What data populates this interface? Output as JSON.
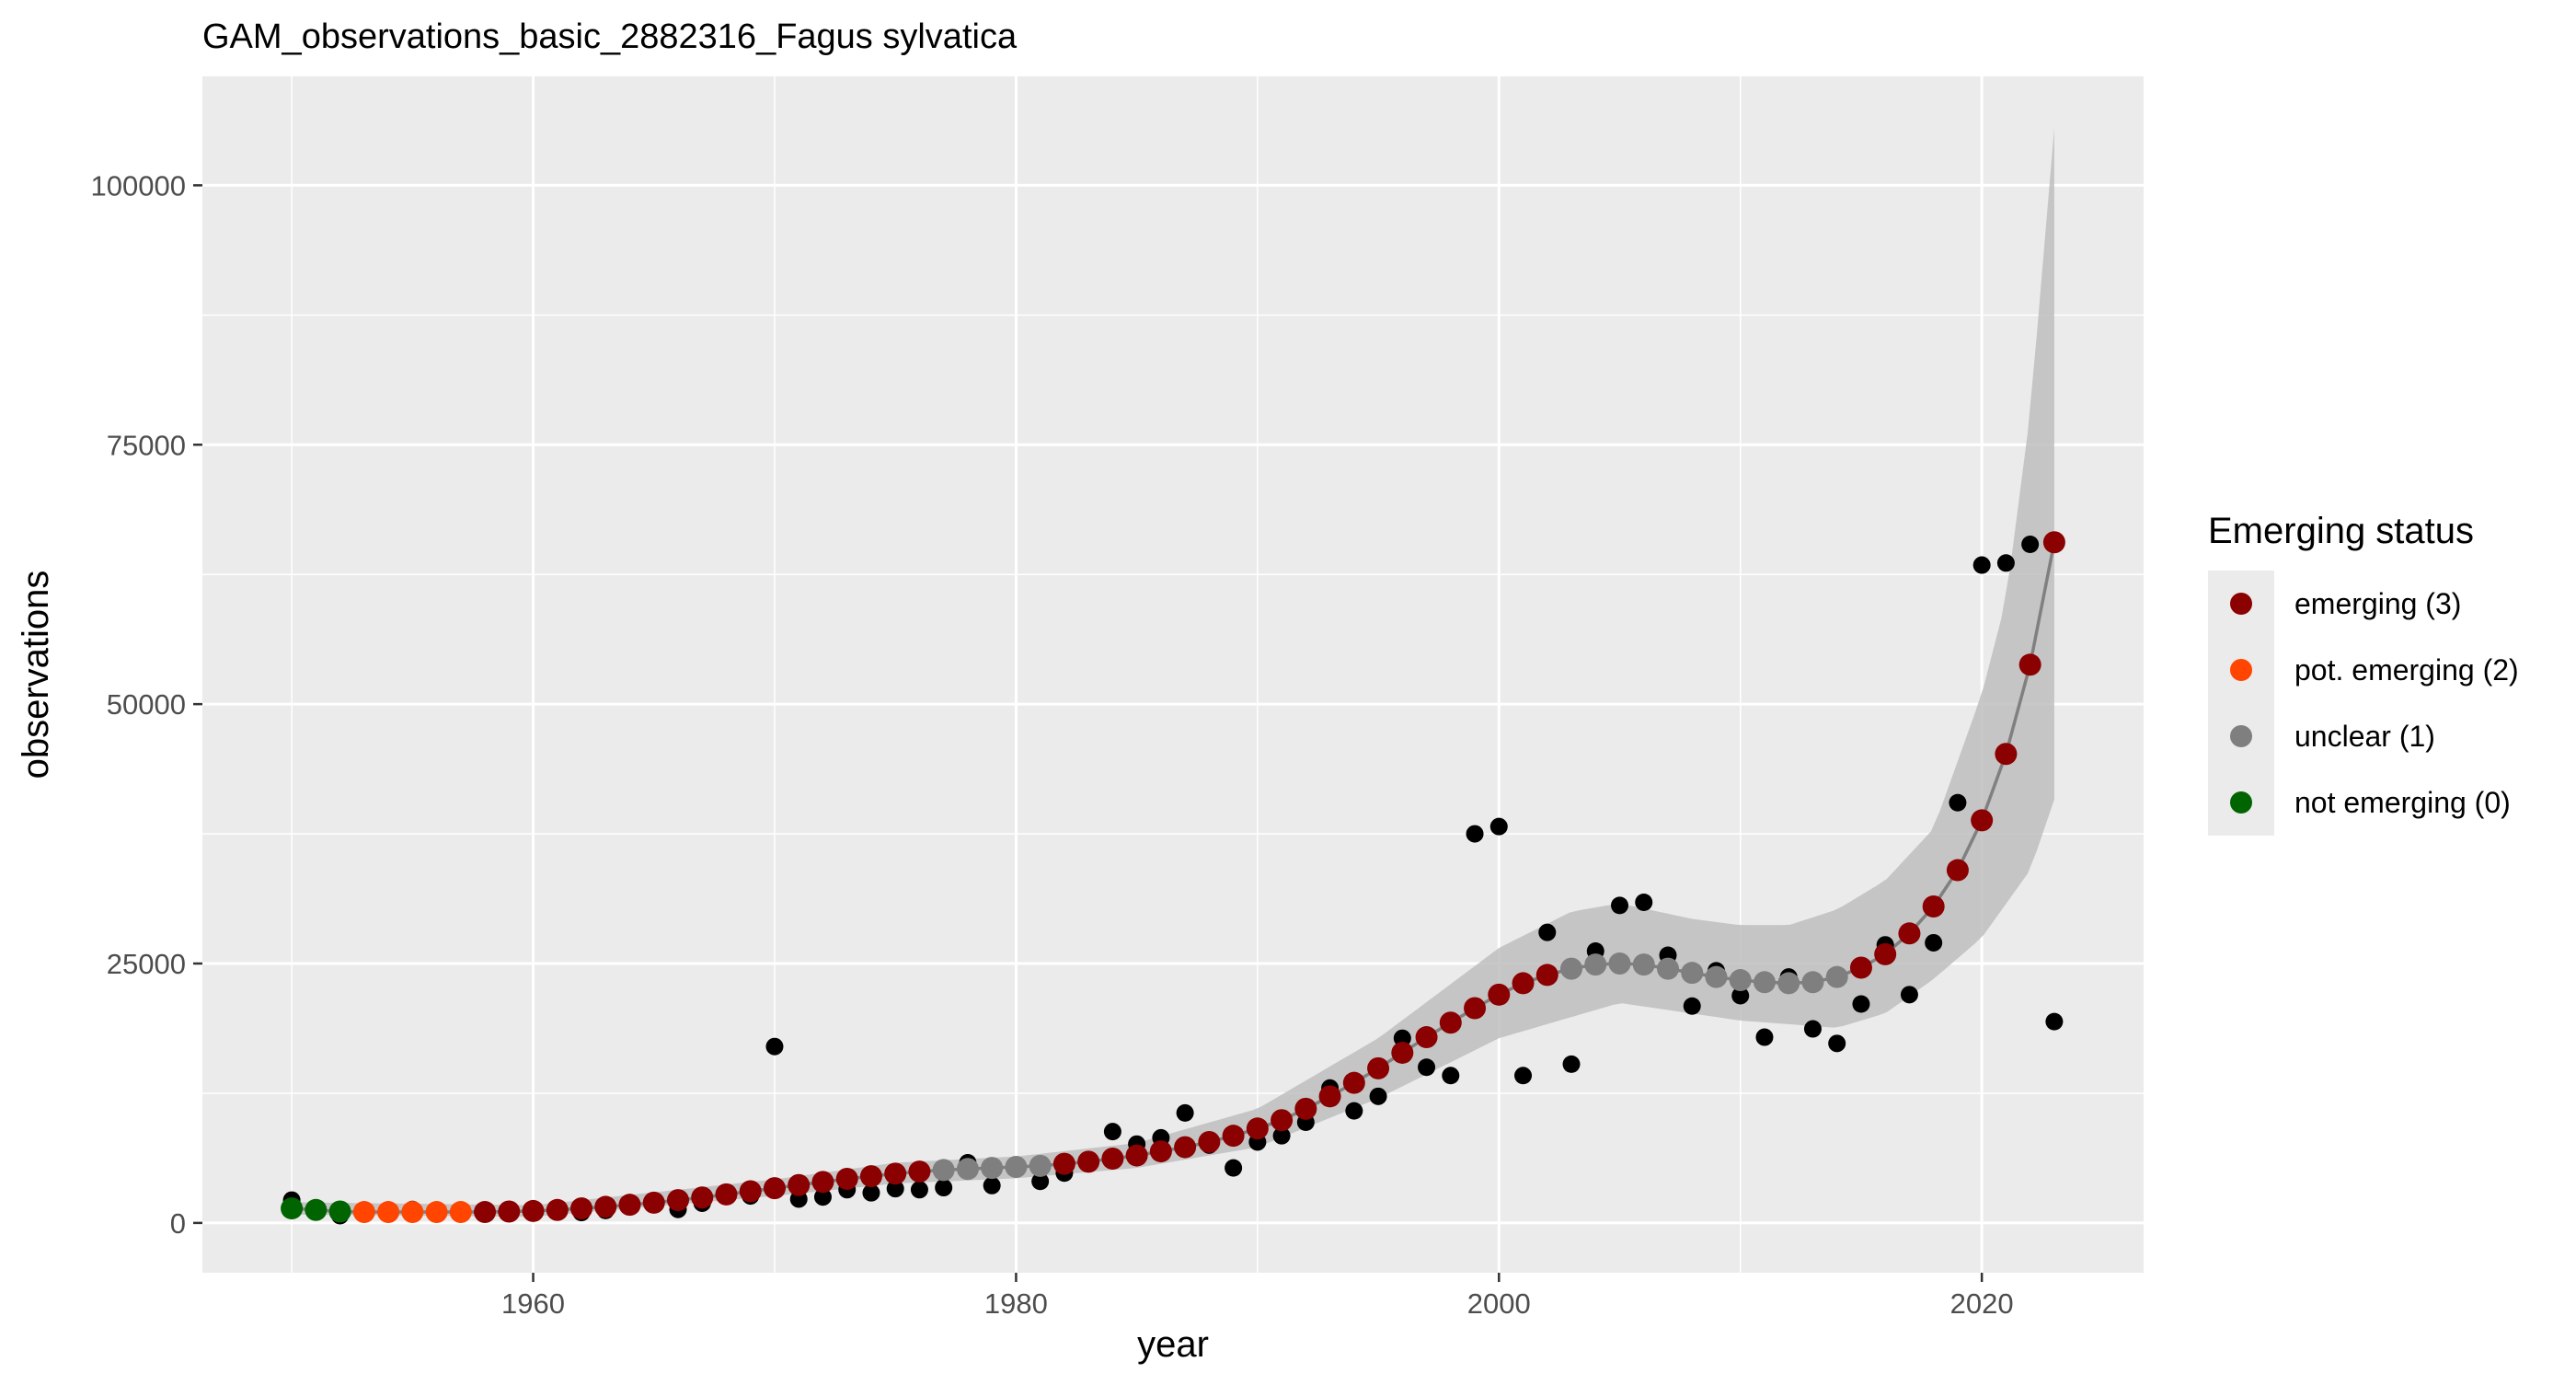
{
  "chart_data": {
    "type": "scatter",
    "title": "GAM_observations_basic_2882316_Fagus sylvatica",
    "xlabel": "year",
    "ylabel": "observations",
    "xlim": [
      1946.3,
      2026.7
    ],
    "ylim": [
      -4800,
      110500
    ],
    "x_ticks": [
      1960,
      1980,
      2000,
      2020
    ],
    "x_tick_labels": [
      "1960",
      "1980",
      "2000",
      "2020"
    ],
    "y_ticks": [
      0,
      25000,
      50000,
      75000,
      100000
    ],
    "y_tick_labels": [
      "0",
      "25000",
      "50000",
      "75000",
      "100000"
    ],
    "grid": true,
    "legend": {
      "title": "Emerging status",
      "placement": "right",
      "entries": [
        {
          "label": "emerging (3)",
          "color": "#8B0000"
        },
        {
          "label": "pot. emerging (2)",
          "color": "#FF4500"
        },
        {
          "label": "unclear (1)",
          "color": "#7F7F7F"
        },
        {
          "label": "not emerging (0)",
          "color": "#006400"
        }
      ]
    },
    "colors": {
      "panel_background": "#EBEBEB",
      "gridline": "#FFFFFF",
      "ribbon": "#BEBEBE",
      "fit_line": "#808080",
      "observed_points": "#000000"
    },
    "series": [
      {
        "name": "observed",
        "color": "#000000",
        "points": [
          [
            1950,
            2200
          ],
          [
            1951,
            1400
          ],
          [
            1952,
            700
          ],
          [
            1953,
            900
          ],
          [
            1954,
            1100
          ],
          [
            1955,
            1300
          ],
          [
            1956,
            1100
          ],
          [
            1957,
            1200
          ],
          [
            1958,
            900
          ],
          [
            1959,
            1000
          ],
          [
            1960,
            1000
          ],
          [
            1961,
            1300
          ],
          [
            1962,
            1000
          ],
          [
            1963,
            1200
          ],
          [
            1964,
            1900
          ],
          [
            1965,
            2000
          ],
          [
            1966,
            1300
          ],
          [
            1967,
            1900
          ],
          [
            1968,
            2800
          ],
          [
            1969,
            2600
          ],
          [
            1970,
            17000
          ],
          [
            1971,
            2300
          ],
          [
            1972,
            2500
          ],
          [
            1973,
            3200
          ],
          [
            1974,
            2900
          ],
          [
            1975,
            3300
          ],
          [
            1976,
            3200
          ],
          [
            1977,
            3400
          ],
          [
            1978,
            5800
          ],
          [
            1979,
            3600
          ],
          [
            1980,
            5400
          ],
          [
            1981,
            4000
          ],
          [
            1982,
            4800
          ],
          [
            1983,
            6000
          ],
          [
            1984,
            8800
          ],
          [
            1985,
            7600
          ],
          [
            1986,
            8200
          ],
          [
            1987,
            10600
          ],
          [
            1988,
            7500
          ],
          [
            1989,
            5300
          ],
          [
            1990,
            7800
          ],
          [
            1991,
            8400
          ],
          [
            1992,
            9700
          ],
          [
            1993,
            13000
          ],
          [
            1994,
            10800
          ],
          [
            1995,
            12200
          ],
          [
            1996,
            17800
          ],
          [
            1997,
            15000
          ],
          [
            1998,
            14200
          ],
          [
            1999,
            37500
          ],
          [
            2000,
            38200
          ],
          [
            2001,
            14200
          ],
          [
            2002,
            28000
          ],
          [
            2003,
            15300
          ],
          [
            2004,
            26200
          ],
          [
            2005,
            30600
          ],
          [
            2006,
            30900
          ],
          [
            2007,
            25800
          ],
          [
            2008,
            20900
          ],
          [
            2009,
            24300
          ],
          [
            2010,
            21900
          ],
          [
            2011,
            17900
          ],
          [
            2012,
            23700
          ],
          [
            2013,
            18700
          ],
          [
            2014,
            17300
          ],
          [
            2015,
            21100
          ],
          [
            2016,
            26800
          ],
          [
            2017,
            22000
          ],
          [
            2018,
            27000
          ],
          [
            2019,
            40500
          ],
          [
            2020,
            63400
          ],
          [
            2021,
            63600
          ],
          [
            2022,
            65400
          ],
          [
            2023,
            19400
          ]
        ]
      },
      {
        "name": "fit",
        "color": "#808080",
        "points": [
          [
            1950,
            1400
          ],
          [
            1951,
            1250
          ],
          [
            1952,
            1100
          ],
          [
            1953,
            1050
          ],
          [
            1954,
            1050
          ],
          [
            1955,
            1050
          ],
          [
            1956,
            1050
          ],
          [
            1957,
            1050
          ],
          [
            1958,
            1050
          ],
          [
            1959,
            1100
          ],
          [
            1960,
            1150
          ],
          [
            1961,
            1250
          ],
          [
            1962,
            1400
          ],
          [
            1963,
            1550
          ],
          [
            1964,
            1750
          ],
          [
            1965,
            1950
          ],
          [
            1966,
            2200
          ],
          [
            1967,
            2450
          ],
          [
            1968,
            2750
          ],
          [
            1969,
            3050
          ],
          [
            1970,
            3350
          ],
          [
            1971,
            3650
          ],
          [
            1972,
            3950
          ],
          [
            1973,
            4250
          ],
          [
            1974,
            4500
          ],
          [
            1975,
            4750
          ],
          [
            1976,
            4950
          ],
          [
            1977,
            5100
          ],
          [
            1978,
            5200
          ],
          [
            1979,
            5300
          ],
          [
            1980,
            5400
          ],
          [
            1981,
            5500
          ],
          [
            1982,
            5700
          ],
          [
            1983,
            5900
          ],
          [
            1984,
            6200
          ],
          [
            1985,
            6500
          ],
          [
            1986,
            6900
          ],
          [
            1987,
            7300
          ],
          [
            1988,
            7800
          ],
          [
            1989,
            8400
          ],
          [
            1990,
            9100
          ],
          [
            1991,
            9900
          ],
          [
            1992,
            11000
          ],
          [
            1993,
            12200
          ],
          [
            1994,
            13500
          ],
          [
            1995,
            14900
          ],
          [
            1996,
            16400
          ],
          [
            1997,
            17900
          ],
          [
            1998,
            19300
          ],
          [
            1999,
            20700
          ],
          [
            2000,
            22000
          ],
          [
            2001,
            23100
          ],
          [
            2002,
            23900
          ],
          [
            2003,
            24500
          ],
          [
            2004,
            24900
          ],
          [
            2005,
            25000
          ],
          [
            2006,
            24900
          ],
          [
            2007,
            24500
          ],
          [
            2008,
            24100
          ],
          [
            2009,
            23700
          ],
          [
            2010,
            23400
          ],
          [
            2011,
            23200
          ],
          [
            2012,
            23100
          ],
          [
            2013,
            23200
          ],
          [
            2014,
            23700
          ],
          [
            2015,
            24600
          ],
          [
            2016,
            25900
          ],
          [
            2017,
            27900
          ],
          [
            2018,
            30500
          ],
          [
            2019,
            34000
          ],
          [
            2020,
            38800
          ],
          [
            2021,
            45200
          ],
          [
            2022,
            53800
          ],
          [
            2023,
            65600
          ]
        ],
        "status": [
          0,
          0,
          0,
          2,
          2,
          2,
          2,
          2,
          3,
          3,
          3,
          3,
          3,
          3,
          3,
          3,
          3,
          3,
          3,
          3,
          3,
          3,
          3,
          3,
          3,
          3,
          3,
          1,
          1,
          1,
          1,
          1,
          3,
          3,
          3,
          3,
          3,
          3,
          3,
          3,
          3,
          3,
          3,
          3,
          3,
          3,
          3,
          3,
          3,
          3,
          3,
          3,
          3,
          1,
          1,
          1,
          1,
          1,
          1,
          1,
          1,
          1,
          1,
          1,
          1,
          3,
          3,
          3,
          3,
          3,
          3,
          3,
          3,
          3
        ]
      },
      {
        "name": "confidence band",
        "color": "#BEBEBE",
        "lower": [
          [
            1950,
            800
          ],
          [
            1960,
            600
          ],
          [
            1970,
            2600
          ],
          [
            1975,
            3800
          ],
          [
            1980,
            4300
          ],
          [
            1985,
            5300
          ],
          [
            1990,
            7300
          ],
          [
            1995,
            12000
          ],
          [
            2000,
            17800
          ],
          [
            2005,
            21200
          ],
          [
            2010,
            19500
          ],
          [
            2014,
            18800
          ],
          [
            2016,
            20200
          ],
          [
            2018,
            23500
          ],
          [
            2020,
            27500
          ],
          [
            2022,
            34000
          ],
          [
            2023,
            40800
          ]
        ],
        "upper": [
          [
            1950,
            2000
          ],
          [
            1960,
            1700
          ],
          [
            1970,
            4200
          ],
          [
            1975,
            5800
          ],
          [
            1980,
            6400
          ],
          [
            1985,
            7700
          ],
          [
            1990,
            11000
          ],
          [
            1995,
            17800
          ],
          [
            2000,
            26500
          ],
          [
            2003,
            30000
          ],
          [
            2005,
            30800
          ],
          [
            2008,
            29300
          ],
          [
            2010,
            28700
          ],
          [
            2012,
            28700
          ],
          [
            2014,
            30200
          ],
          [
            2016,
            33000
          ],
          [
            2018,
            38000
          ],
          [
            2020,
            51000
          ],
          [
            2021,
            60000
          ],
          [
            2022,
            78000
          ],
          [
            2023,
            105500
          ]
        ]
      }
    ]
  }
}
